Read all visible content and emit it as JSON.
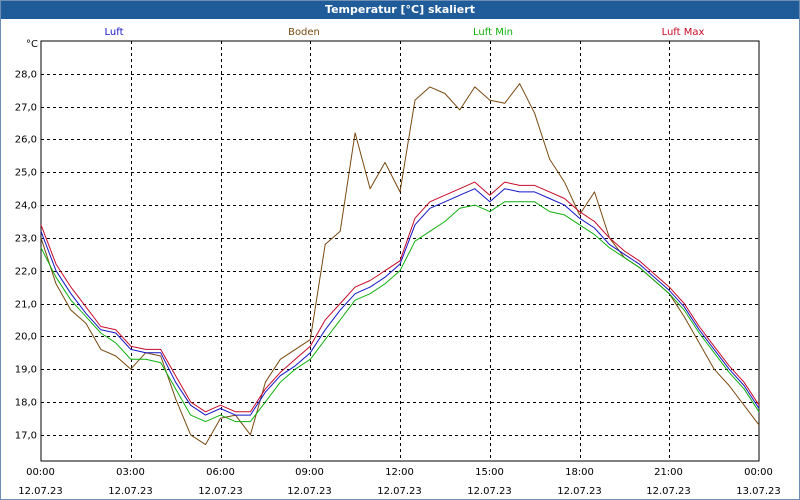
{
  "window": {
    "title": "Temperatur [°C] skaliert"
  },
  "colors": {
    "luft": "#1515c8",
    "boden": "#7a4a10",
    "luft_min": "#10b010",
    "luft_max": "#c80a28",
    "grid": "#000000",
    "titlebar": "#1f5c99"
  },
  "chart_data": {
    "type": "line",
    "title": "Temperatur [°C] skaliert",
    "ylabel": "°C",
    "xlabel": "",
    "ylim": [
      16.2,
      29.0
    ],
    "xlim": [
      0,
      24
    ],
    "grid": true,
    "legend_position": "top",
    "yticks": [
      {
        "value": 17.0,
        "label": "17,0"
      },
      {
        "value": 18.0,
        "label": "18,0"
      },
      {
        "value": 19.0,
        "label": "19,0"
      },
      {
        "value": 20.0,
        "label": "20,0"
      },
      {
        "value": 21.0,
        "label": "21,0"
      },
      {
        "value": 22.0,
        "label": "22,0"
      },
      {
        "value": 23.0,
        "label": "23,0"
      },
      {
        "value": 24.0,
        "label": "24,0"
      },
      {
        "value": 25.0,
        "label": "25,0"
      },
      {
        "value": 26.0,
        "label": "26,0"
      },
      {
        "value": 27.0,
        "label": "27,0"
      },
      {
        "value": 28.0,
        "label": "28,0"
      }
    ],
    "xticks": [
      {
        "value": 0,
        "time": "00:00",
        "date": "12.07.23"
      },
      {
        "value": 3,
        "time": "03:00",
        "date": "12.07.23"
      },
      {
        "value": 6,
        "time": "06:00",
        "date": "12.07.23"
      },
      {
        "value": 9,
        "time": "09:00",
        "date": "12.07.23"
      },
      {
        "value": 12,
        "time": "12:00",
        "date": "12.07.23"
      },
      {
        "value": 15,
        "time": "15:00",
        "date": "12.07.23"
      },
      {
        "value": 18,
        "time": "18:00",
        "date": "12.07.23"
      },
      {
        "value": 21,
        "time": "21:00",
        "date": "12.07.23"
      },
      {
        "value": 24,
        "time": "00:00",
        "date": "13.07.23"
      }
    ],
    "x": [
      0,
      0.5,
      1,
      1.5,
      2,
      2.5,
      3,
      3.5,
      4,
      4.5,
      5,
      5.5,
      6,
      6.5,
      7,
      7.5,
      8,
      8.5,
      9,
      9.5,
      10,
      10.5,
      11,
      11.5,
      12,
      12.5,
      13,
      13.5,
      14,
      14.5,
      15,
      15.5,
      16,
      16.5,
      17,
      17.5,
      18,
      18.5,
      19,
      19.5,
      20,
      20.5,
      21,
      21.5,
      22,
      22.5,
      23,
      23.5,
      24
    ],
    "series": [
      {
        "name": "Luft",
        "key": "luft",
        "values": [
          23.2,
          22.0,
          21.3,
          20.7,
          20.2,
          20.1,
          19.6,
          19.5,
          19.5,
          18.6,
          17.9,
          17.6,
          17.8,
          17.6,
          17.6,
          18.3,
          18.8,
          19.1,
          19.5,
          20.2,
          20.8,
          21.3,
          21.5,
          21.8,
          22.2,
          23.4,
          23.9,
          24.1,
          24.3,
          24.5,
          24.1,
          24.5,
          24.4,
          24.4,
          24.2,
          24.0,
          23.6,
          23.3,
          22.8,
          22.5,
          22.2,
          21.8,
          21.4,
          20.9,
          20.2,
          19.6,
          19.0,
          18.5,
          17.8
        ]
      },
      {
        "name": "Boden",
        "key": "boden",
        "values": [
          23.0,
          21.6,
          20.8,
          20.4,
          19.6,
          19.4,
          19.0,
          19.5,
          19.4,
          18.1,
          17.0,
          16.7,
          17.5,
          17.6,
          17.0,
          18.6,
          19.3,
          19.6,
          19.9,
          22.8,
          23.2,
          26.2,
          24.5,
          25.3,
          24.4,
          27.2,
          27.6,
          27.4,
          26.9,
          27.6,
          27.2,
          27.1,
          27.7,
          26.8,
          25.4,
          24.7,
          23.7,
          24.4,
          23.0,
          22.4,
          22.1,
          21.7,
          21.3,
          20.6,
          19.8,
          19.0,
          18.5,
          17.9,
          17.3
        ]
      },
      {
        "name": "Luft Min",
        "key": "luft_min",
        "values": [
          22.7,
          21.8,
          21.1,
          20.6,
          20.1,
          19.8,
          19.3,
          19.3,
          19.2,
          18.4,
          17.6,
          17.4,
          17.6,
          17.4,
          17.4,
          18.0,
          18.6,
          19.0,
          19.3,
          19.9,
          20.5,
          21.1,
          21.3,
          21.6,
          22.0,
          22.9,
          23.2,
          23.5,
          23.9,
          24.0,
          23.8,
          24.1,
          24.1,
          24.1,
          23.8,
          23.7,
          23.4,
          23.1,
          22.7,
          22.4,
          22.1,
          21.7,
          21.3,
          20.8,
          20.1,
          19.5,
          18.9,
          18.4,
          17.7
        ]
      },
      {
        "name": "Luft Max",
        "key": "luft_max",
        "values": [
          23.4,
          22.2,
          21.5,
          20.9,
          20.3,
          20.2,
          19.7,
          19.6,
          19.6,
          18.8,
          18.0,
          17.7,
          17.9,
          17.7,
          17.7,
          18.4,
          18.9,
          19.3,
          19.7,
          20.5,
          21.0,
          21.5,
          21.7,
          22.0,
          22.3,
          23.6,
          24.1,
          24.3,
          24.5,
          24.7,
          24.3,
          24.7,
          24.6,
          24.6,
          24.4,
          24.2,
          23.8,
          23.5,
          23.0,
          22.6,
          22.3,
          21.9,
          21.5,
          21.0,
          20.3,
          19.7,
          19.1,
          18.6,
          17.9
        ]
      }
    ]
  }
}
